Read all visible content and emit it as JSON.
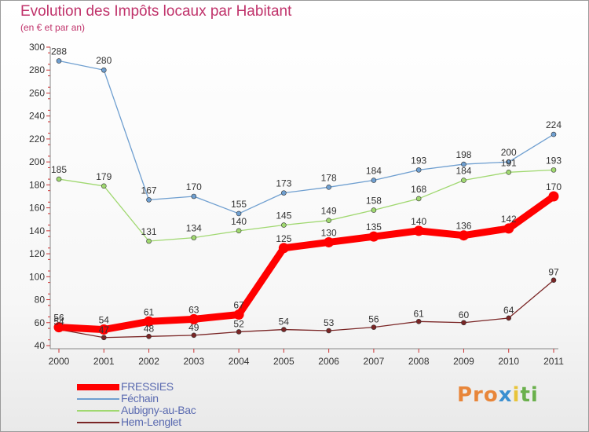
{
  "title": "Evolution des Impôts locaux par Habitant",
  "subtitle": "(en € et par an)",
  "logo": {
    "p1": "Pro",
    "p2": "x",
    "p3": "i",
    "p4": "ti"
  },
  "chart_data": {
    "type": "line",
    "title": "Evolution des Impôts locaux par Habitant",
    "ylabel": "(en € et par an)",
    "xlabel": "",
    "ylim": [
      40,
      300
    ],
    "yticks": [
      40,
      60,
      80,
      100,
      120,
      140,
      160,
      180,
      200,
      220,
      240,
      260,
      280,
      300
    ],
    "categories": [
      "2000",
      "2001",
      "2002",
      "2003",
      "2004",
      "2005",
      "2006",
      "2007",
      "2008",
      "2009",
      "2010",
      "2011"
    ],
    "grid": false,
    "legend_position": "bottom-left",
    "series": [
      {
        "name": "FRESSIES",
        "color": "#ff0000",
        "values": [
          56,
          54,
          61,
          63,
          67,
          125,
          130,
          135,
          140,
          136,
          142,
          170
        ]
      },
      {
        "name": "Féchain",
        "color": "#6f9fd0",
        "values": [
          288,
          280,
          167,
          170,
          155,
          173,
          178,
          184,
          193,
          198,
          200,
          224
        ]
      },
      {
        "name": "Aubigny-au-Bac",
        "color": "#a0d870",
        "values": [
          185,
          179,
          131,
          134,
          140,
          145,
          149,
          158,
          168,
          184,
          191,
          193
        ]
      },
      {
        "name": "Hem-Lenglet",
        "color": "#7a2525",
        "values": [
          54,
          47,
          48,
          49,
          52,
          54,
          53,
          56,
          61,
          60,
          64,
          97
        ]
      }
    ]
  }
}
